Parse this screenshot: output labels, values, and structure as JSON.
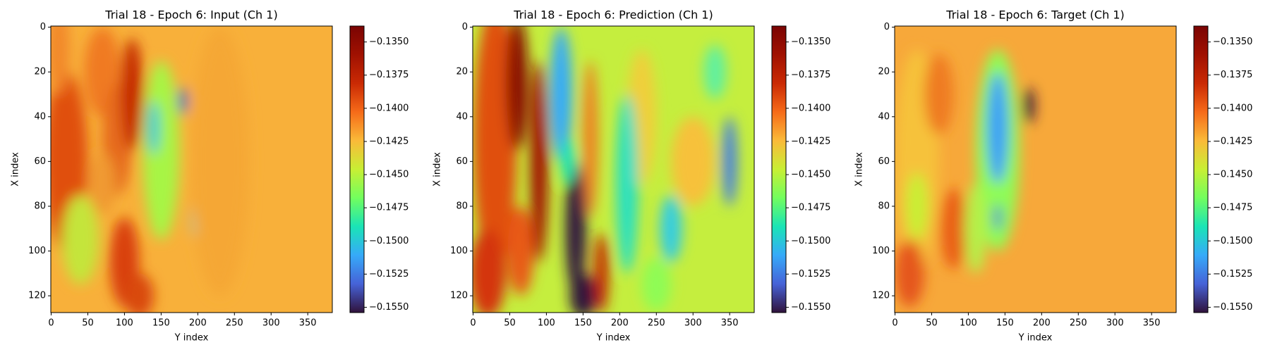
{
  "chart_data": [
    {
      "type": "heatmap",
      "title": "Trial 18 - Epoch 6: Input (Ch 1)",
      "xlabel": "Y index",
      "ylabel": "X index",
      "colormap": "turbo",
      "xlim": [
        -0.5,
        383.5
      ],
      "ylim": [
        127.5,
        -0.5
      ],
      "xticks": [
        0,
        50,
        100,
        150,
        200,
        250,
        300,
        350
      ],
      "yticks": [
        0,
        20,
        40,
        60,
        80,
        100,
        120
      ],
      "clim": [
        -0.1554,
        -0.1338
      ],
      "cticks": [
        {
          "value": -0.135,
          "label": "−0.1350"
        },
        {
          "value": -0.1375,
          "label": "−0.1375"
        },
        {
          "value": -0.14,
          "label": "−0.1400"
        },
        {
          "value": -0.1425,
          "label": "−0.1425"
        },
        {
          "value": -0.145,
          "label": "−0.1450"
        },
        {
          "value": -0.1475,
          "label": "−0.1475"
        },
        {
          "value": -0.15,
          "label": "−0.1500"
        },
        {
          "value": -0.1525,
          "label": "−0.1525"
        },
        {
          "value": -0.155,
          "label": "−0.1550"
        }
      ]
    },
    {
      "type": "heatmap",
      "title": "Trial 18 - Epoch 6: Prediction (Ch 1)",
      "xlabel": "Y index",
      "ylabel": "X index",
      "colormap": "turbo",
      "xlim": [
        -0.5,
        383.5
      ],
      "ylim": [
        127.5,
        -0.5
      ],
      "xticks": [
        0,
        50,
        100,
        150,
        200,
        250,
        300,
        350
      ],
      "yticks": [
        0,
        20,
        40,
        60,
        80,
        100,
        120
      ],
      "clim": [
        -0.1554,
        -0.1338
      ],
      "cticks": [
        {
          "value": -0.135,
          "label": "−0.1350"
        },
        {
          "value": -0.1375,
          "label": "−0.1375"
        },
        {
          "value": -0.14,
          "label": "−0.1400"
        },
        {
          "value": -0.1425,
          "label": "−0.1425"
        },
        {
          "value": -0.145,
          "label": "−0.1450"
        },
        {
          "value": -0.1475,
          "label": "−0.1475"
        },
        {
          "value": -0.15,
          "label": "−0.1500"
        },
        {
          "value": -0.1525,
          "label": "−0.1525"
        },
        {
          "value": -0.155,
          "label": "−0.1550"
        }
      ]
    },
    {
      "type": "heatmap",
      "title": "Trial 18 - Epoch 6: Target (Ch 1)",
      "xlabel": "Y index",
      "ylabel": "X index",
      "colormap": "turbo",
      "xlim": [
        -0.5,
        383.5
      ],
      "ylim": [
        127.5,
        -0.5
      ],
      "xticks": [
        0,
        50,
        100,
        150,
        200,
        250,
        300,
        350
      ],
      "yticks": [
        0,
        20,
        40,
        60,
        80,
        100,
        120
      ],
      "clim": [
        -0.1554,
        -0.1338
      ],
      "cticks": [
        {
          "value": -0.135,
          "label": "−0.1350"
        },
        {
          "value": -0.1375,
          "label": "−0.1375"
        },
        {
          "value": -0.14,
          "label": "−0.1400"
        },
        {
          "value": -0.1425,
          "label": "−0.1425"
        },
        {
          "value": -0.145,
          "label": "−0.1450"
        },
        {
          "value": -0.1475,
          "label": "−0.1475"
        },
        {
          "value": -0.15,
          "label": "−0.1500"
        },
        {
          "value": -0.1525,
          "label": "−0.1525"
        },
        {
          "value": -0.155,
          "label": "−0.1550"
        }
      ]
    }
  ]
}
